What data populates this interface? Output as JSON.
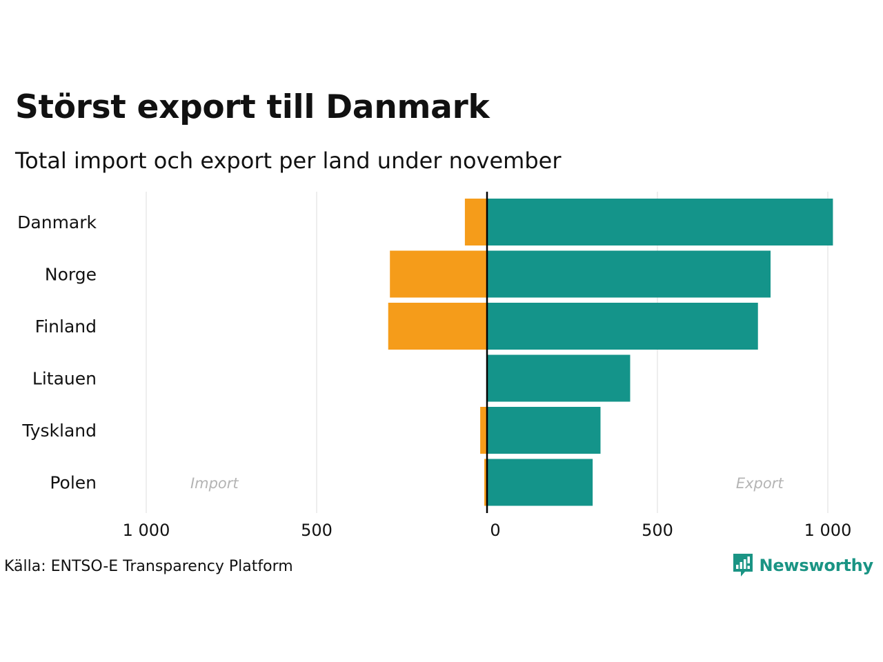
{
  "title": "Störst export till Danmark",
  "subtitle": "Total import och export per land under november",
  "source": "Källa: ENTSO-E Transparency Platform",
  "brand": {
    "name": "Newsworthy",
    "icon": "newsworthy-logo-icon"
  },
  "colors": {
    "import": "#f59c1a",
    "export": "#14948a",
    "grid": "#e8e8e8",
    "axis": "#000000",
    "panel_label": "#b4b4b4"
  },
  "chart_data": {
    "type": "bar",
    "orientation": "horizontal",
    "categories": [
      "Danmark",
      "Norge",
      "Finland",
      "Litauen",
      "Tyskland",
      "Polen"
    ],
    "series": [
      {
        "name": "Import",
        "values": [
          65,
          285,
          290,
          0,
          20,
          8
        ]
      },
      {
        "name": "Export",
        "values": [
          1015,
          832,
          795,
          420,
          333,
          310
        ]
      }
    ],
    "xlim": [
      -1000,
      1000
    ],
    "ticks": [
      -1000,
      -500,
      0,
      500,
      1000
    ],
    "tick_labels": [
      "1 000",
      "500",
      "0",
      "500",
      "1 000"
    ],
    "panel_labels": {
      "import": "Import",
      "export": "Export"
    },
    "grid": true,
    "legend": "none"
  }
}
